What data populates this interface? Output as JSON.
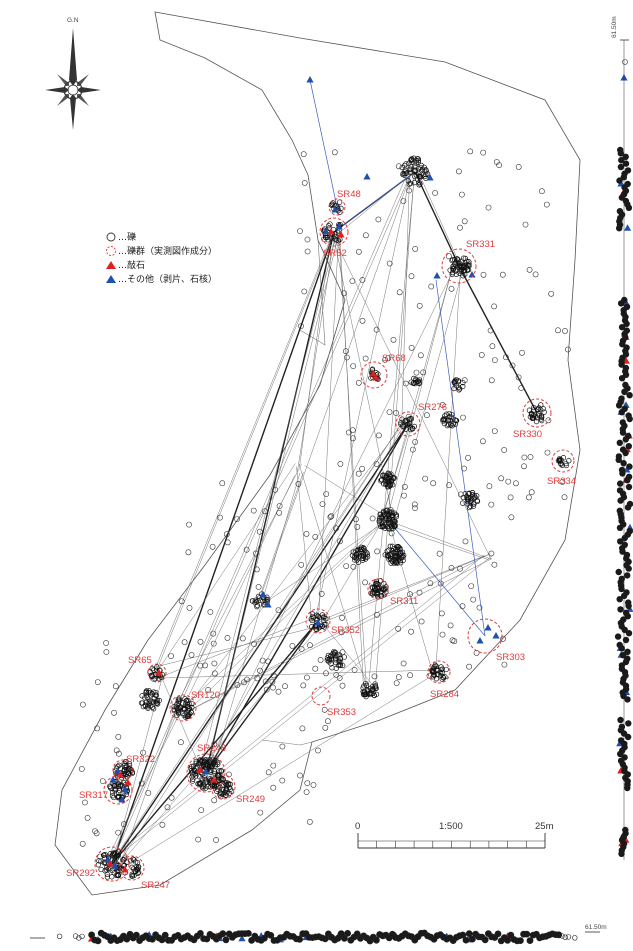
{
  "north": {
    "label": "G.N"
  },
  "legend": {
    "items": [
      {
        "symbol": "circle",
        "label": "…礫"
      },
      {
        "symbol": "dashed-circle",
        "label": "…礫群（実測図作成分）"
      },
      {
        "symbol": "red-triangle",
        "label": "…敲石"
      },
      {
        "symbol": "blue-triangle",
        "label": "…その他（剥片、石核）"
      }
    ]
  },
  "scale": {
    "zero": "0",
    "ratio": "1:500",
    "end": "25m"
  },
  "elevation": {
    "right": "61.50m",
    "bottom": "61.50m"
  },
  "colors": {
    "site": "#e23b3b",
    "triangle_red": "#e02020",
    "triangle_blue": "#1f4fb0",
    "pebble": "#222222",
    "outline": "#555555"
  },
  "sites": [
    {
      "name": "SR48"
    },
    {
      "name": "SR52"
    },
    {
      "name": "SR331"
    },
    {
      "name": "SR68"
    },
    {
      "name": "SR276"
    },
    {
      "name": "SR330"
    },
    {
      "name": "SR334"
    },
    {
      "name": "SR311"
    },
    {
      "name": "SR352"
    },
    {
      "name": "SR303"
    },
    {
      "name": "SR65"
    },
    {
      "name": "SR120"
    },
    {
      "name": "SR284"
    },
    {
      "name": "SR353"
    },
    {
      "name": "SR322"
    },
    {
      "name": "SR248"
    },
    {
      "name": "SR317"
    },
    {
      "name": "SR249"
    },
    {
      "name": "SR292"
    },
    {
      "name": "SR247"
    }
  ]
}
